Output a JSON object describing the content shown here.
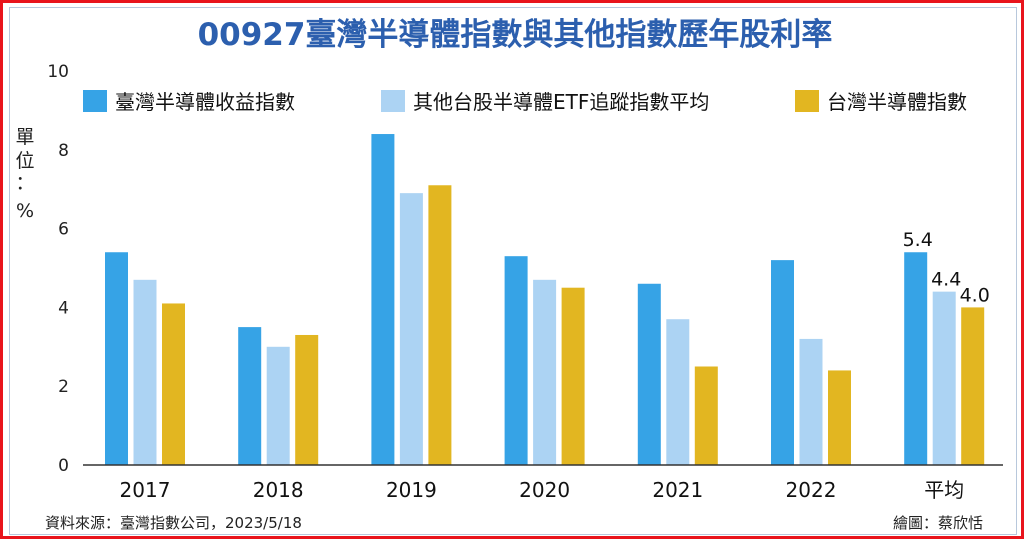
{
  "chart_data": {
    "type": "bar",
    "title": "00927臺灣半導體指數與其他指數歷年股利率",
    "ylabel": "單位：%",
    "unit_chars": [
      "單",
      "位",
      "：",
      "%"
    ],
    "ylim": [
      0,
      10
    ],
    "yticks": [
      0,
      2,
      4,
      6,
      8,
      10
    ],
    "categories": [
      "2017",
      "2018",
      "2019",
      "2020",
      "2021",
      "2022",
      "平均"
    ],
    "series": [
      {
        "name": "臺灣半導體收益指數",
        "color": "#36a3e6",
        "values": [
          5.4,
          3.5,
          8.4,
          5.3,
          4.6,
          5.2,
          5.4
        ]
      },
      {
        "name": "其他台股半導體ETF追蹤指數平均",
        "color": "#acd3f3",
        "values": [
          4.7,
          3.0,
          6.9,
          4.7,
          3.7,
          3.2,
          4.4
        ]
      },
      {
        "name": "台灣半導體指數",
        "color": "#e2b621",
        "values": [
          4.1,
          3.3,
          7.1,
          4.5,
          2.5,
          2.4,
          4.0
        ]
      }
    ],
    "data_labels": {
      "category": "平均",
      "labels": [
        "5.4",
        "4.4",
        "4.0"
      ]
    },
    "legend_position": "top",
    "grid": false
  },
  "footer": {
    "source": "資料來源：臺灣指數公司，2023/5/18",
    "credit": "繪圖：蔡欣恬"
  }
}
